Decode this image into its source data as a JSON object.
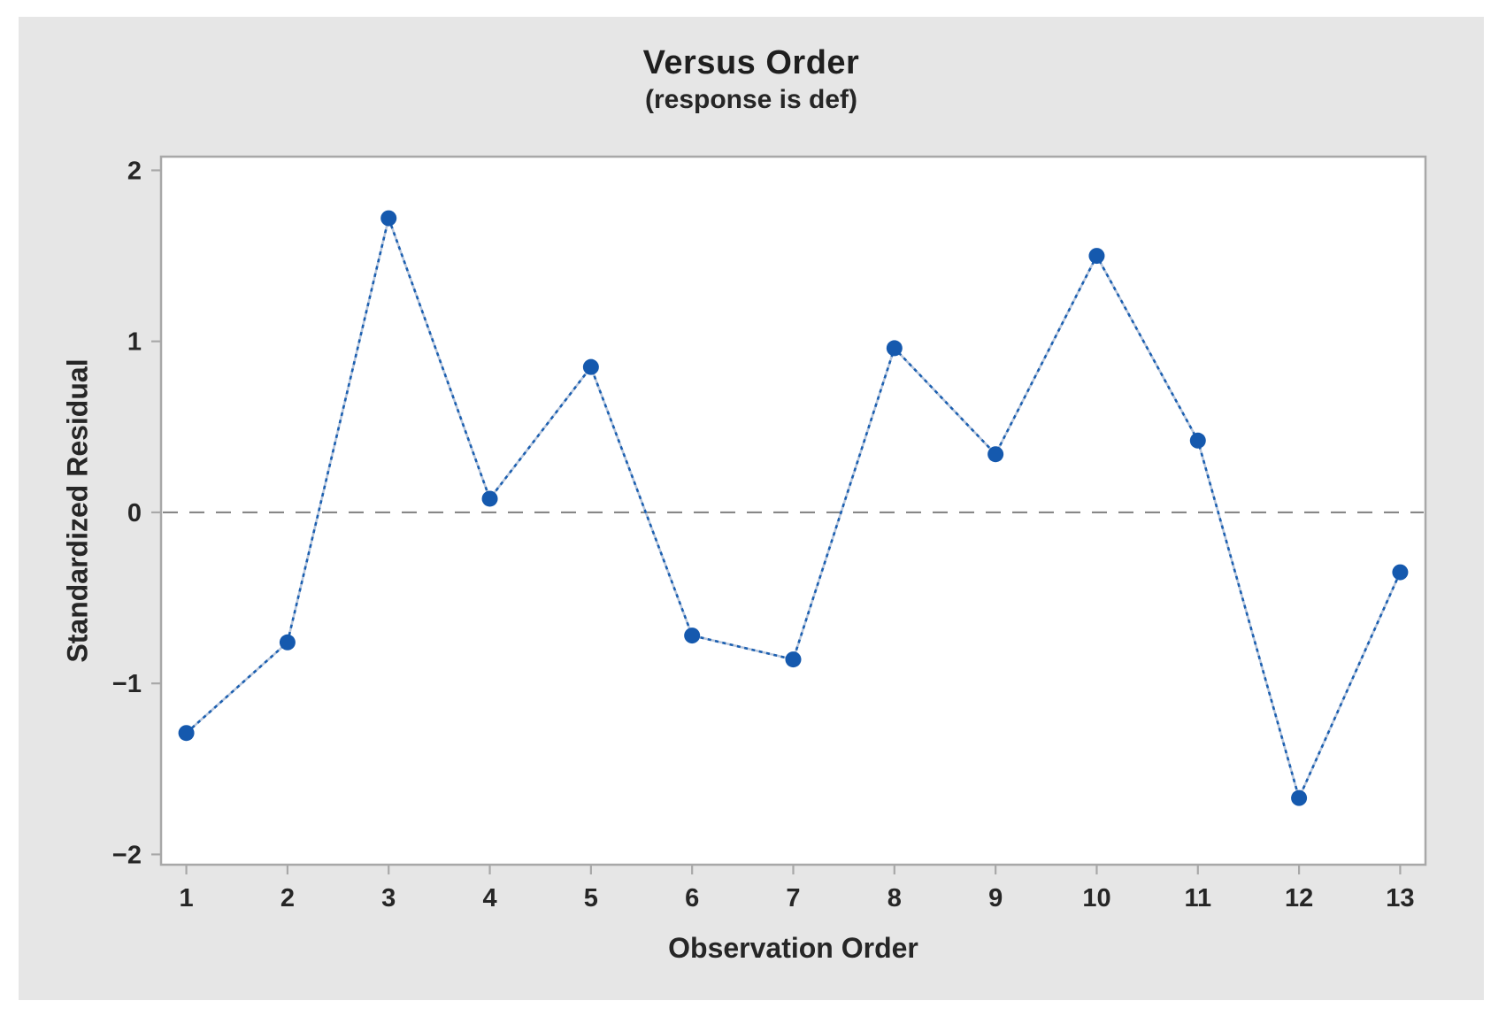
{
  "chart_data": {
    "type": "line",
    "title": "Versus Order",
    "subtitle": "(response is def)",
    "xlabel": "Observation Order",
    "ylabel": "Standardized Residual",
    "series_name": "standardized-residuals",
    "x": [
      1,
      2,
      3,
      4,
      5,
      6,
      7,
      8,
      9,
      10,
      11,
      12,
      13
    ],
    "values": [
      -1.29,
      -0.76,
      1.72,
      0.08,
      0.85,
      -0.72,
      -0.86,
      0.96,
      0.34,
      1.5,
      0.42,
      -1.67,
      -0.35
    ],
    "xticks": [
      1,
      2,
      3,
      4,
      5,
      6,
      7,
      8,
      9,
      10,
      11,
      12,
      13
    ],
    "yticks": [
      -2,
      -1,
      0,
      1,
      2
    ],
    "xlim": [
      0.75,
      13.25
    ],
    "ylim": [
      -2.06,
      2.08
    ],
    "reference_line": 0,
    "grid": false,
    "legend": false,
    "marker": "circle",
    "line_style": "dashed",
    "colors": {
      "point": "#1559ae",
      "line_dash": "#1b5fb0",
      "line_base": "#b9c7dc",
      "reference_line": "#878787",
      "axis": "#a8a8a8",
      "plot_background": "#ffffff",
      "canvas_background": "#e6e6e6",
      "text": "#262626"
    }
  }
}
